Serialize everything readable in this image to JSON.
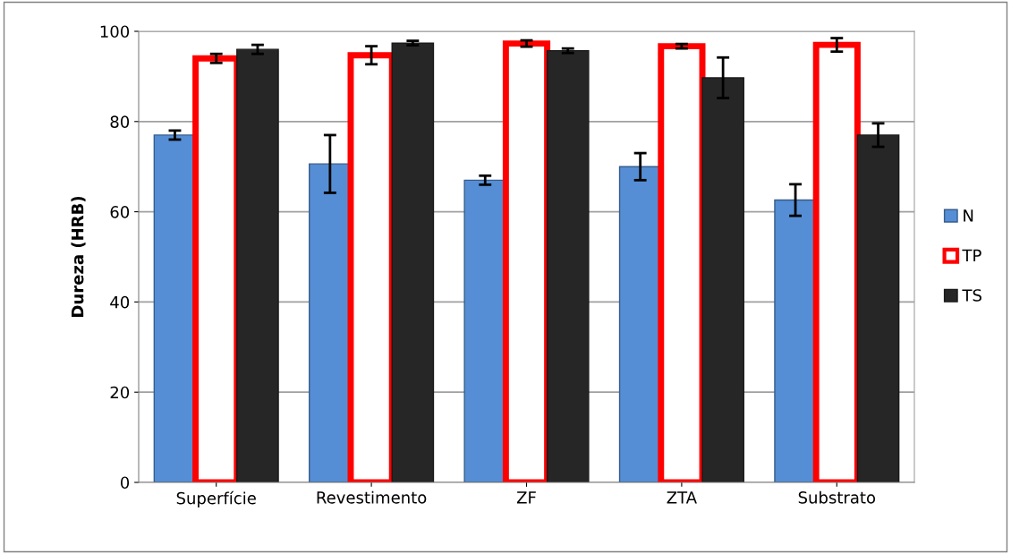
{
  "chart_data": {
    "type": "bar",
    "ylabel": "Dureza (HRB)",
    "categories": [
      "Superfície",
      "Revestimento",
      "ZF",
      "ZTA",
      "Substrato"
    ],
    "series": [
      {
        "name": "N",
        "color": "#558ed5",
        "values": [
          77,
          70.6,
          67,
          70,
          62.6
        ],
        "errors": [
          1,
          6.4,
          1,
          3,
          3.5
        ]
      },
      {
        "name": "TP",
        "color": "#ff0000",
        "values": [
          94,
          94.7,
          97.3,
          96.7,
          97
        ],
        "errors": [
          1,
          2,
          0.7,
          0.5,
          1.5
        ]
      },
      {
        "name": "TS",
        "color": "#262626",
        "values": [
          96,
          97.4,
          95.7,
          89.7,
          77
        ],
        "errors": [
          1,
          0.5,
          0.5,
          4.5,
          2.6
        ]
      }
    ],
    "ylim": [
      0,
      100
    ],
    "yticks": [
      0,
      20,
      40,
      60,
      80,
      100
    ],
    "grid": "y",
    "legend": "right"
  }
}
